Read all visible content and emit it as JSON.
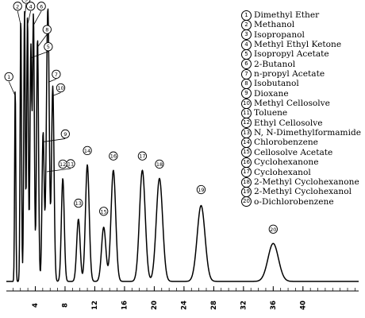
{
  "chart_data": {
    "type": "line",
    "title": "",
    "xlabel": "",
    "ylabel": "",
    "xlim": [
      0,
      42
    ],
    "x_ticks": [
      4,
      8,
      12,
      16,
      20,
      24,
      28,
      32,
      36,
      40
    ],
    "grid": false,
    "legend_position": "top-right",
    "colors": {
      "trace": "#000000",
      "background": "#ffffff"
    },
    "peaks": [
      {
        "id": "①",
        "name": "Dimethyl Ether",
        "rt": 1.3,
        "height": 0.72
      },
      {
        "id": "②",
        "name": "Methanol",
        "rt": 2.05,
        "height": 0.98
      },
      {
        "id": "③",
        "name": "Isopropanol",
        "rt": 2.55,
        "height": 1.0
      },
      {
        "id": "④",
        "name": "Methyl Ethyl Ketone",
        "rt": 2.95,
        "height": 0.98
      },
      {
        "id": "⑤",
        "name": "Isopropyl Acetate",
        "rt": 3.4,
        "height": 0.86
      },
      {
        "id": "⑥",
        "name": "2-Butanol",
        "rt": 3.75,
        "height": 0.98
      },
      {
        "id": "⑦",
        "name": "n-propyl Acetate",
        "rt": 5.75,
        "height": 0.77
      },
      {
        "id": "⑧",
        "name": "Isobutanol",
        "rt": 4.3,
        "height": 0.9
      },
      {
        "id": "⑨",
        "name": "Dioxane",
        "rt": 5.05,
        "height": 0.55
      },
      {
        "id": "⑩",
        "name": "Methyl Cellosolve",
        "rt": 6.35,
        "height": 0.72
      },
      {
        "id": "⑪",
        "name": "Toluene",
        "rt": 5.55,
        "height": 0.44
      },
      {
        "id": "⑫",
        "name": "Ethyl Cellosolve",
        "rt": 7.7,
        "height": 0.38
      },
      {
        "id": "⑬",
        "name": "N, N-Dimethylformamide",
        "rt": 9.8,
        "height": 0.23
      },
      {
        "id": "⑭",
        "name": "Chlorobenzene",
        "rt": 11.0,
        "height": 0.43
      },
      {
        "id": "⑮",
        "name": "Cellosolve Acetate",
        "rt": 13.2,
        "height": 0.2
      },
      {
        "id": "⑯",
        "name": "Cyclohexanone",
        "rt": 14.5,
        "height": 0.41
      },
      {
        "id": "⑰",
        "name": "Cyclohexanol",
        "rt": 18.4,
        "height": 0.41
      },
      {
        "id": "⑱",
        "name": "2-Methyl Cyclohexanone",
        "rt": 20.7,
        "height": 0.38
      },
      {
        "id": "⑲",
        "name": "2-Methyl Cyclohexanol",
        "rt": 26.3,
        "height": 0.28
      },
      {
        "id": "⑳",
        "name": "o-Dichlorobenzene",
        "rt": 36.0,
        "height": 0.14
      }
    ]
  },
  "legend": {
    "items": [
      {
        "num": "1",
        "label": "Dimethyl Ether"
      },
      {
        "num": "2",
        "label": "Methanol"
      },
      {
        "num": "3",
        "label": "Isopropanol"
      },
      {
        "num": "4",
        "label": "Methyl Ethyl Ketone"
      },
      {
        "num": "5",
        "label": "Isopropyl Acetate"
      },
      {
        "num": "6",
        "label": "2-Butanol"
      },
      {
        "num": "7",
        "label": "n-propyl Acetate"
      },
      {
        "num": "8",
        "label": "Isobutanol"
      },
      {
        "num": "9",
        "label": "Dioxane"
      },
      {
        "num": "10",
        "label": "Methyl Cellosolve"
      },
      {
        "num": "11",
        "label": "Toluene"
      },
      {
        "num": "12",
        "label": "Ethyl Cellosolve"
      },
      {
        "num": "13",
        "label": "N, N-Dimethylformamide"
      },
      {
        "num": "14",
        "label": "Chlorobenzene"
      },
      {
        "num": "15",
        "label": "Cellosolve Acetate"
      },
      {
        "num": "16",
        "label": "Cyclohexanone"
      },
      {
        "num": "17",
        "label": "Cyclohexanol"
      },
      {
        "num": "18",
        "label": "2-Methyl Cyclohexanone"
      },
      {
        "num": "19",
        "label": "2-Methyl Cyclohexanol"
      },
      {
        "num": "20",
        "label": "o-Dichlorobenzene"
      }
    ]
  }
}
